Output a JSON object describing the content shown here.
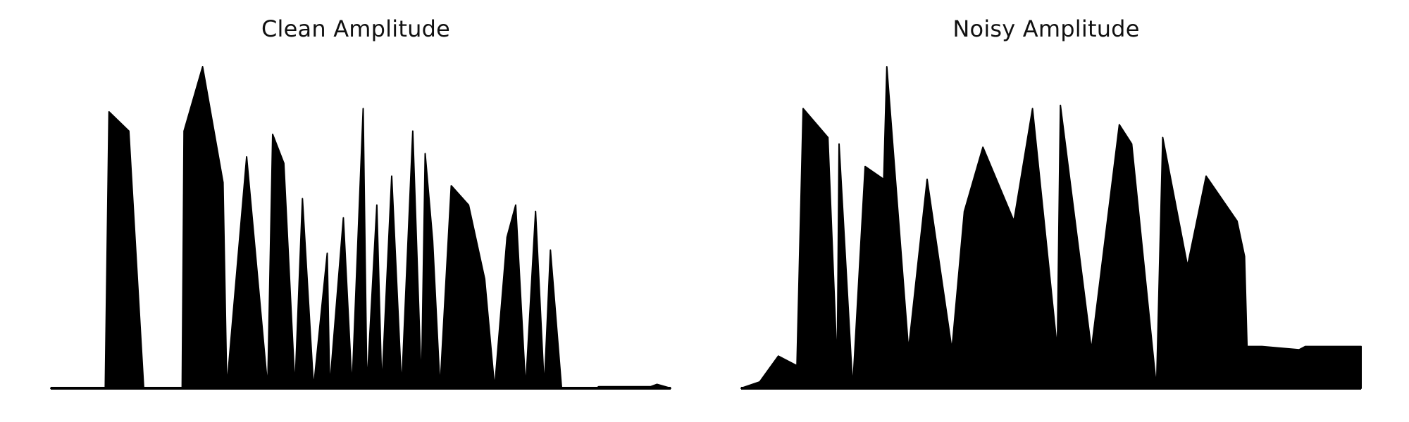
{
  "chart_data": [
    {
      "type": "area",
      "title": "Clean Amplitude",
      "xlabel": "",
      "ylabel": "",
      "axes_visible": false,
      "grid": false,
      "color": "#000000",
      "ylim": [
        0,
        1.0
      ],
      "x": [
        0,
        0.088,
        0.094,
        0.126,
        0.15,
        0.212,
        0.215,
        0.245,
        0.278,
        0.284,
        0.316,
        0.35,
        0.358,
        0.376,
        0.394,
        0.406,
        0.424,
        0.446,
        0.45,
        0.472,
        0.486,
        0.504,
        0.51,
        0.526,
        0.534,
        0.55,
        0.566,
        0.584,
        0.598,
        0.604,
        0.616,
        0.628,
        0.646,
        0.674,
        0.7,
        0.716,
        0.736,
        0.75,
        0.766,
        0.782,
        0.796,
        0.806,
        0.824,
        0.88,
        0.884,
        0.968,
        0.978,
        1.0
      ],
      "values": [
        0.0,
        0.0,
        0.86,
        0.8,
        0.0,
        0.0,
        0.8,
        1.0,
        0.64,
        0.0,
        0.72,
        0.0,
        0.79,
        0.7,
        0.0,
        0.59,
        0.0,
        0.42,
        0.0,
        0.53,
        0.0,
        0.87,
        0.0,
        0.57,
        0.0,
        0.66,
        0.0,
        0.8,
        0.0,
        0.73,
        0.46,
        0.0,
        0.63,
        0.57,
        0.34,
        0.0,
        0.47,
        0.57,
        0.0,
        0.55,
        0.0,
        0.43,
        0.0,
        0.0,
        0.005,
        0.005,
        0.012,
        0.0
      ]
    },
    {
      "type": "area",
      "title": "Noisy Amplitude",
      "xlabel": "",
      "ylabel": "",
      "axes_visible": false,
      "grid": false,
      "color": "#000000",
      "ylim": [
        0,
        1.0
      ],
      "x": [
        0,
        0.03,
        0.045,
        0.06,
        0.09,
        0.1,
        0.14,
        0.155,
        0.158,
        0.18,
        0.2,
        0.23,
        0.235,
        0.27,
        0.3,
        0.34,
        0.36,
        0.39,
        0.44,
        0.47,
        0.51,
        0.515,
        0.565,
        0.61,
        0.63,
        0.67,
        0.68,
        0.72,
        0.75,
        0.8,
        0.812,
        0.816,
        0.84,
        0.9,
        0.91,
        1.0
      ],
      "values": [
        0.0,
        0.02,
        0.06,
        0.1,
        0.07,
        0.87,
        0.78,
        0.06,
        0.76,
        0.0,
        0.69,
        0.65,
        1.0,
        0.12,
        0.65,
        0.12,
        0.55,
        0.75,
        0.52,
        0.87,
        0.12,
        0.88,
        0.12,
        0.82,
        0.76,
        0.0,
        0.78,
        0.38,
        0.66,
        0.52,
        0.41,
        0.13,
        0.13,
        0.12,
        0.13,
        0.13
      ]
    }
  ]
}
